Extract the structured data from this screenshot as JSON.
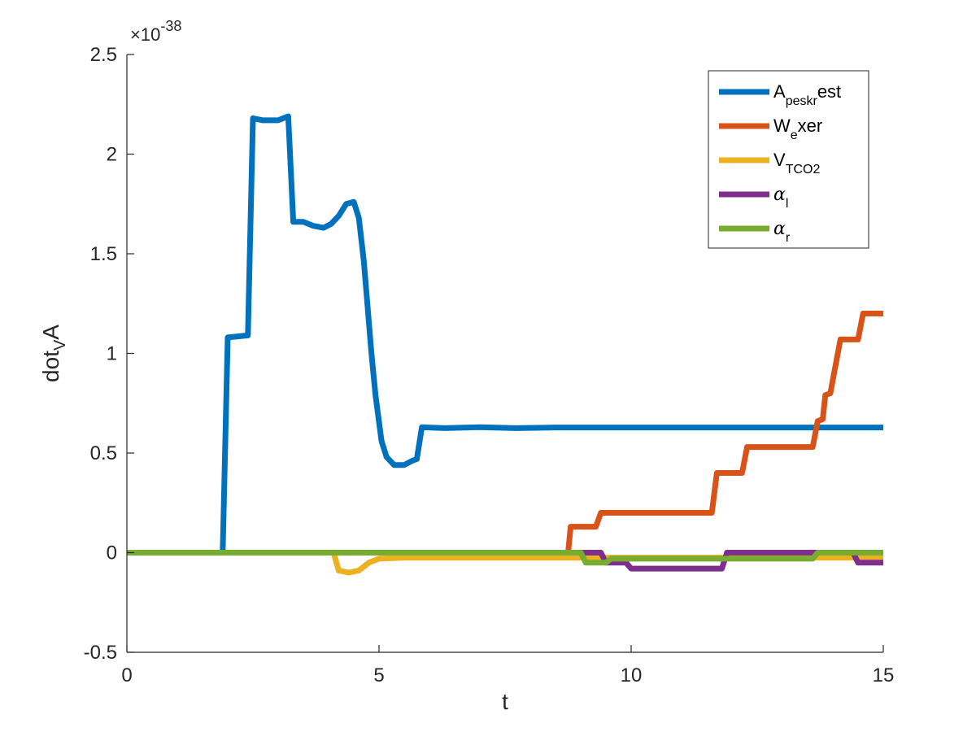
{
  "chart_data": {
    "type": "line",
    "xlabel": "t",
    "ylabel": "dot_{V}A",
    "ylabel_main": "dot",
    "ylabel_sub": "V",
    "ylabel_after": "A",
    "exponent_prefix": "×10",
    "exponent": "-38",
    "xlim": [
      0,
      15
    ],
    "ylim": [
      -0.5,
      2.5
    ],
    "xticks": [
      0,
      5,
      10,
      15
    ],
    "yticks": [
      -0.5,
      0,
      0.5,
      1,
      1.5,
      2,
      2.5
    ],
    "xtick_labels": [
      "0",
      "5",
      "10",
      "15"
    ],
    "ytick_labels": [
      "-0.5",
      "0",
      "0.5",
      "1",
      "1.5",
      "2",
      "2.5"
    ],
    "grid": false,
    "legend_position": "top-right",
    "colors": {
      "blue": "#0072BD",
      "orange": "#D95319",
      "yellow": "#EDB120",
      "purple": "#7E2F8E",
      "green": "#77AC30"
    },
    "series": [
      {
        "name": "A_{peskr}est",
        "legend_main": "A",
        "legend_sub": "peskr",
        "legend_after": "est",
        "greek": false,
        "color": "#0072BD",
        "points": [
          [
            0,
            0
          ],
          [
            1.9,
            0
          ],
          [
            2.0,
            1.08
          ],
          [
            2.4,
            1.09
          ],
          [
            2.5,
            2.18
          ],
          [
            2.7,
            2.17
          ],
          [
            3.0,
            2.17
          ],
          [
            3.2,
            2.19
          ],
          [
            3.3,
            1.66
          ],
          [
            3.5,
            1.66
          ],
          [
            3.7,
            1.64
          ],
          [
            3.9,
            1.63
          ],
          [
            4.05,
            1.65
          ],
          [
            4.2,
            1.69
          ],
          [
            4.35,
            1.75
          ],
          [
            4.5,
            1.76
          ],
          [
            4.6,
            1.68
          ],
          [
            4.7,
            1.46
          ],
          [
            4.85,
            1.0
          ],
          [
            4.93,
            0.79
          ],
          [
            5.05,
            0.56
          ],
          [
            5.15,
            0.48
          ],
          [
            5.3,
            0.44
          ],
          [
            5.5,
            0.44
          ],
          [
            5.65,
            0.46
          ],
          [
            5.75,
            0.47
          ],
          [
            5.85,
            0.63
          ],
          [
            6.3,
            0.625
          ],
          [
            7.0,
            0.63
          ],
          [
            7.7,
            0.625
          ],
          [
            8.5,
            0.628
          ],
          [
            10,
            0.628
          ],
          [
            15,
            0.628
          ]
        ]
      },
      {
        "name": "W_{e}xer",
        "legend_main": "W",
        "legend_sub": "e",
        "legend_after": "xer",
        "greek": false,
        "color": "#D95319",
        "points": [
          [
            0,
            0
          ],
          [
            8.75,
            0
          ],
          [
            8.8,
            0.13
          ],
          [
            9.3,
            0.13
          ],
          [
            9.4,
            0.2
          ],
          [
            11.6,
            0.2
          ],
          [
            11.7,
            0.4
          ],
          [
            12.2,
            0.4
          ],
          [
            12.3,
            0.53
          ],
          [
            13.6,
            0.53
          ],
          [
            13.7,
            0.66
          ],
          [
            13.8,
            0.67
          ],
          [
            13.85,
            0.79
          ],
          [
            13.95,
            0.8
          ],
          [
            14.15,
            1.07
          ],
          [
            14.5,
            1.07
          ],
          [
            14.6,
            1.2
          ],
          [
            15,
            1.2
          ]
        ]
      },
      {
        "name": "V_{TCO2}",
        "legend_main": "V",
        "legend_sub": "TCO2",
        "legend_after": "",
        "greek": false,
        "color": "#EDB120",
        "points": [
          [
            0,
            0
          ],
          [
            4.1,
            0
          ],
          [
            4.2,
            -0.09
          ],
          [
            4.4,
            -0.1
          ],
          [
            4.6,
            -0.09
          ],
          [
            4.8,
            -0.05
          ],
          [
            5.0,
            -0.03
          ],
          [
            5.5,
            -0.025
          ],
          [
            15,
            -0.025
          ]
        ]
      },
      {
        "name": "α_{l}",
        "legend_main": "α",
        "legend_sub": "l",
        "legend_after": "",
        "greek": true,
        "color": "#7E2F8E",
        "points": [
          [
            0,
            0
          ],
          [
            9.4,
            0
          ],
          [
            9.5,
            -0.05
          ],
          [
            9.9,
            -0.05
          ],
          [
            10.0,
            -0.08
          ],
          [
            11.8,
            -0.08
          ],
          [
            11.9,
            0
          ],
          [
            14.4,
            0
          ],
          [
            14.5,
            -0.05
          ],
          [
            15,
            -0.05
          ]
        ]
      },
      {
        "name": "α_{r}",
        "legend_main": "α",
        "legend_sub": "r",
        "legend_after": "",
        "greek": true,
        "color": "#77AC30",
        "points": [
          [
            0,
            0
          ],
          [
            9.0,
            0
          ],
          [
            9.1,
            -0.05
          ],
          [
            9.5,
            -0.05
          ],
          [
            9.6,
            -0.03
          ],
          [
            13.6,
            -0.03
          ],
          [
            13.7,
            0
          ],
          [
            15,
            0
          ]
        ]
      }
    ]
  }
}
